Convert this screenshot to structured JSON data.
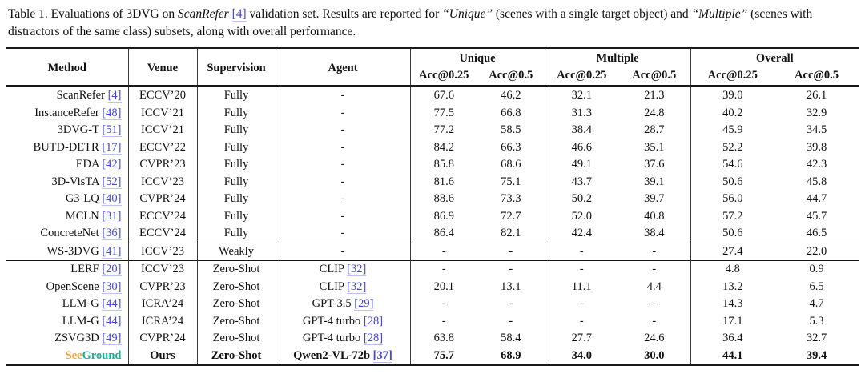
{
  "caption": {
    "parts": [
      {
        "text": "Table 1. Evaluations of 3DVG on ",
        "style": "plain"
      },
      {
        "text": "ScanRefer",
        "style": "italic"
      },
      {
        "text": " ",
        "style": "plain"
      },
      {
        "text": "[4]",
        "style": "cite"
      },
      {
        "text": " validation set. Results are reported for ",
        "style": "plain"
      },
      {
        "text": "“Unique”",
        "style": "italic"
      },
      {
        "text": " (scenes with a single target object) and ",
        "style": "plain"
      },
      {
        "text": "“Multiple”",
        "style": "italic"
      },
      {
        "text": " (scenes with distractors of the same class) subsets, along with overall performance.",
        "style": "plain"
      }
    ]
  },
  "colors": {
    "cite": "#4245e0",
    "see": "#F8A33C",
    "ground": "#17B295"
  },
  "table": {
    "header": {
      "method": "Method",
      "venue": "Venue",
      "supervision": "Supervision",
      "agent": "Agent",
      "groups": [
        "Unique",
        "Multiple",
        "Overall"
      ],
      "acc25": "Acc@0.25",
      "acc5": "Acc@0.5"
    },
    "sections": [
      {
        "name": "fully-supervised",
        "rows": [
          {
            "method": "ScanRefer",
            "cite": "[4]",
            "venue": "ECCV’20",
            "supervision": "Fully",
            "agent": "-",
            "values": [
              "67.6",
              "46.2",
              "32.1",
              "21.3",
              "39.0",
              "26.1"
            ]
          },
          {
            "method": "InstanceRefer",
            "cite": "[48]",
            "venue": "ICCV’21",
            "supervision": "Fully",
            "agent": "-",
            "values": [
              "77.5",
              "66.8",
              "31.3",
              "24.8",
              "40.2",
              "32.9"
            ]
          },
          {
            "method": "3DVG-T",
            "cite": "[51]",
            "venue": "ICCV’21",
            "supervision": "Fully",
            "agent": "-",
            "values": [
              "77.2",
              "58.5",
              "38.4",
              "28.7",
              "45.9",
              "34.5"
            ]
          },
          {
            "method": "BUTD-DETR",
            "cite": "[17]",
            "venue": "ECCV’22",
            "supervision": "Fully",
            "agent": "-",
            "values": [
              "84.2",
              "66.3",
              "46.6",
              "35.1",
              "52.2",
              "39.8"
            ]
          },
          {
            "method": "EDA",
            "cite": "[42]",
            "venue": "CVPR’23",
            "supervision": "Fully",
            "agent": "-",
            "values": [
              "85.8",
              "68.6",
              "49.1",
              "37.6",
              "54.6",
              "42.3"
            ]
          },
          {
            "method": "3D-VisTA",
            "cite": "[52]",
            "venue": "ICCV’23",
            "supervision": "Fully",
            "agent": "-",
            "values": [
              "81.6",
              "75.1",
              "43.7",
              "39.1",
              "50.6",
              "45.8"
            ]
          },
          {
            "method": "G3-LQ",
            "cite": "[40]",
            "venue": "CVPR’24",
            "supervision": "Fully",
            "agent": "-",
            "values": [
              "88.6",
              "73.3",
              "50.2",
              "39.7",
              "56.0",
              "44.7"
            ]
          },
          {
            "method": "MCLN",
            "cite": "[31]",
            "venue": "ECCV’24",
            "supervision": "Fully",
            "agent": "-",
            "values": [
              "86.9",
              "72.7",
              "52.0",
              "40.8",
              "57.2",
              "45.7"
            ]
          },
          {
            "method": "ConcreteNet",
            "cite": "[36]",
            "venue": "ECCV’24",
            "supervision": "Fully",
            "agent": "-",
            "values": [
              "86.4",
              "82.1",
              "42.4",
              "38.4",
              "50.6",
              "46.5"
            ]
          }
        ]
      },
      {
        "name": "weakly-supervised",
        "rows": [
          {
            "method": "WS-3DVG",
            "cite": "[41]",
            "venue": "ICCV’23",
            "supervision": "Weakly",
            "agent": "-",
            "values": [
              "-",
              "-",
              "-",
              "-",
              "27.4",
              "22.0"
            ]
          }
        ]
      },
      {
        "name": "zero-shot",
        "rows": [
          {
            "method": "LERF",
            "cite": "[20]",
            "venue": "ICCV’23",
            "supervision": "Zero-Shot",
            "agent": "CLIP",
            "agent_cite": "[32]",
            "values": [
              "-",
              "-",
              "-",
              "-",
              "4.8",
              "0.9"
            ]
          },
          {
            "method": "OpenScene",
            "cite": "[30]",
            "venue": "CVPR’23",
            "supervision": "Zero-Shot",
            "agent": "CLIP",
            "agent_cite": "[32]",
            "values": [
              "20.1",
              "13.1",
              "11.1",
              "4.4",
              "13.2",
              "6.5"
            ]
          },
          {
            "method": "LLM-G",
            "cite": "[44]",
            "venue": "ICRA’24",
            "supervision": "Zero-Shot",
            "agent": "GPT-3.5",
            "agent_cite": "[29]",
            "values": [
              "-",
              "-",
              "-",
              "-",
              "14.3",
              "4.7"
            ]
          },
          {
            "method": "LLM-G",
            "cite": "[44]",
            "venue": "ICRA’24",
            "supervision": "Zero-Shot",
            "agent": "GPT-4 turbo",
            "agent_cite": "[28]",
            "values": [
              "-",
              "-",
              "-",
              "-",
              "17.1",
              "5.3"
            ]
          },
          {
            "method": "ZSVG3D",
            "cite": "[49]",
            "venue": "CVPR’24",
            "supervision": "Zero-Shot",
            "agent": "GPT-4 turbo",
            "agent_cite": "[28]",
            "values": [
              "63.8",
              "58.4",
              "27.7",
              "24.6",
              "36.4",
              "32.7"
            ]
          },
          {
            "method_colored": [
              {
                "text": "See",
                "color_key": "see"
              },
              {
                "text": "Ground",
                "color_key": "ground"
              }
            ],
            "venue": "Ours",
            "venue_bold": true,
            "supervision": "Zero-Shot",
            "agent": "Qwen2-VL-72b",
            "agent_cite": "[37]",
            "values": [
              "75.7",
              "68.9",
              "34.0",
              "30.0",
              "44.1",
              "39.4"
            ],
            "bold": true
          }
        ]
      }
    ]
  }
}
